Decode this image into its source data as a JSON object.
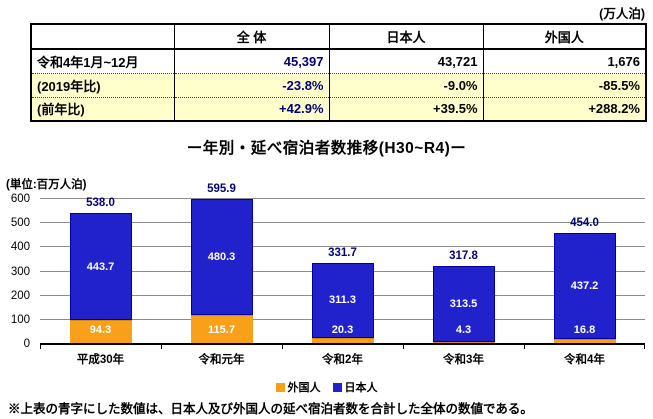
{
  "unit_top": "(万人泊)",
  "colors": {
    "table_highlight": "#FFFFCC",
    "accent_blue": "#000080",
    "bar_blue": "#2222CC",
    "bar_blue_border": "#0000A0",
    "bar_orange": "#F9A01B",
    "bar_orange_border": "#D98C00",
    "grid_gray": "#8C8C8C"
  },
  "table": {
    "headers": [
      "",
      "全 体",
      "日本人",
      "外国人"
    ],
    "rows": [
      {
        "label": "令和4年1月~12月",
        "values": [
          "45,397",
          "43,721",
          "1,676"
        ]
      },
      {
        "label": "(2019年比)",
        "values": [
          "-23.8%",
          "-9.0%",
          "-85.5%"
        ]
      },
      {
        "label": "(前年比)",
        "values": [
          "+42.9%",
          "+39.5%",
          "+288.2%"
        ]
      }
    ]
  },
  "chart_data": {
    "type": "bar",
    "stacked": true,
    "title": "ー年別・延べ宿泊者数推移(H30~R4)ー",
    "unit_label": "(単位:百万人泊)",
    "categories": [
      "平成30年",
      "令和元年",
      "令和2年",
      "令和3年",
      "令和4年"
    ],
    "series": [
      {
        "name": "外国人",
        "color_key": "bar_orange",
        "values": [
          94.3,
          115.7,
          20.3,
          4.3,
          16.8
        ]
      },
      {
        "name": "日本人",
        "color_key": "bar_blue",
        "values": [
          443.7,
          480.3,
          311.3,
          313.5,
          437.2
        ]
      }
    ],
    "totals": [
      538.0,
      595.9,
      331.7,
      317.8,
      454.0
    ],
    "ylim": [
      0,
      600
    ],
    "yticks": [
      0,
      100,
      200,
      300,
      400,
      500,
      600
    ],
    "grid": true,
    "legend_position": "bottom"
  },
  "footnote": "※上表の青字にした数値は、日本人及び外国人の延べ宿泊者数を合計した全体の数値である。"
}
